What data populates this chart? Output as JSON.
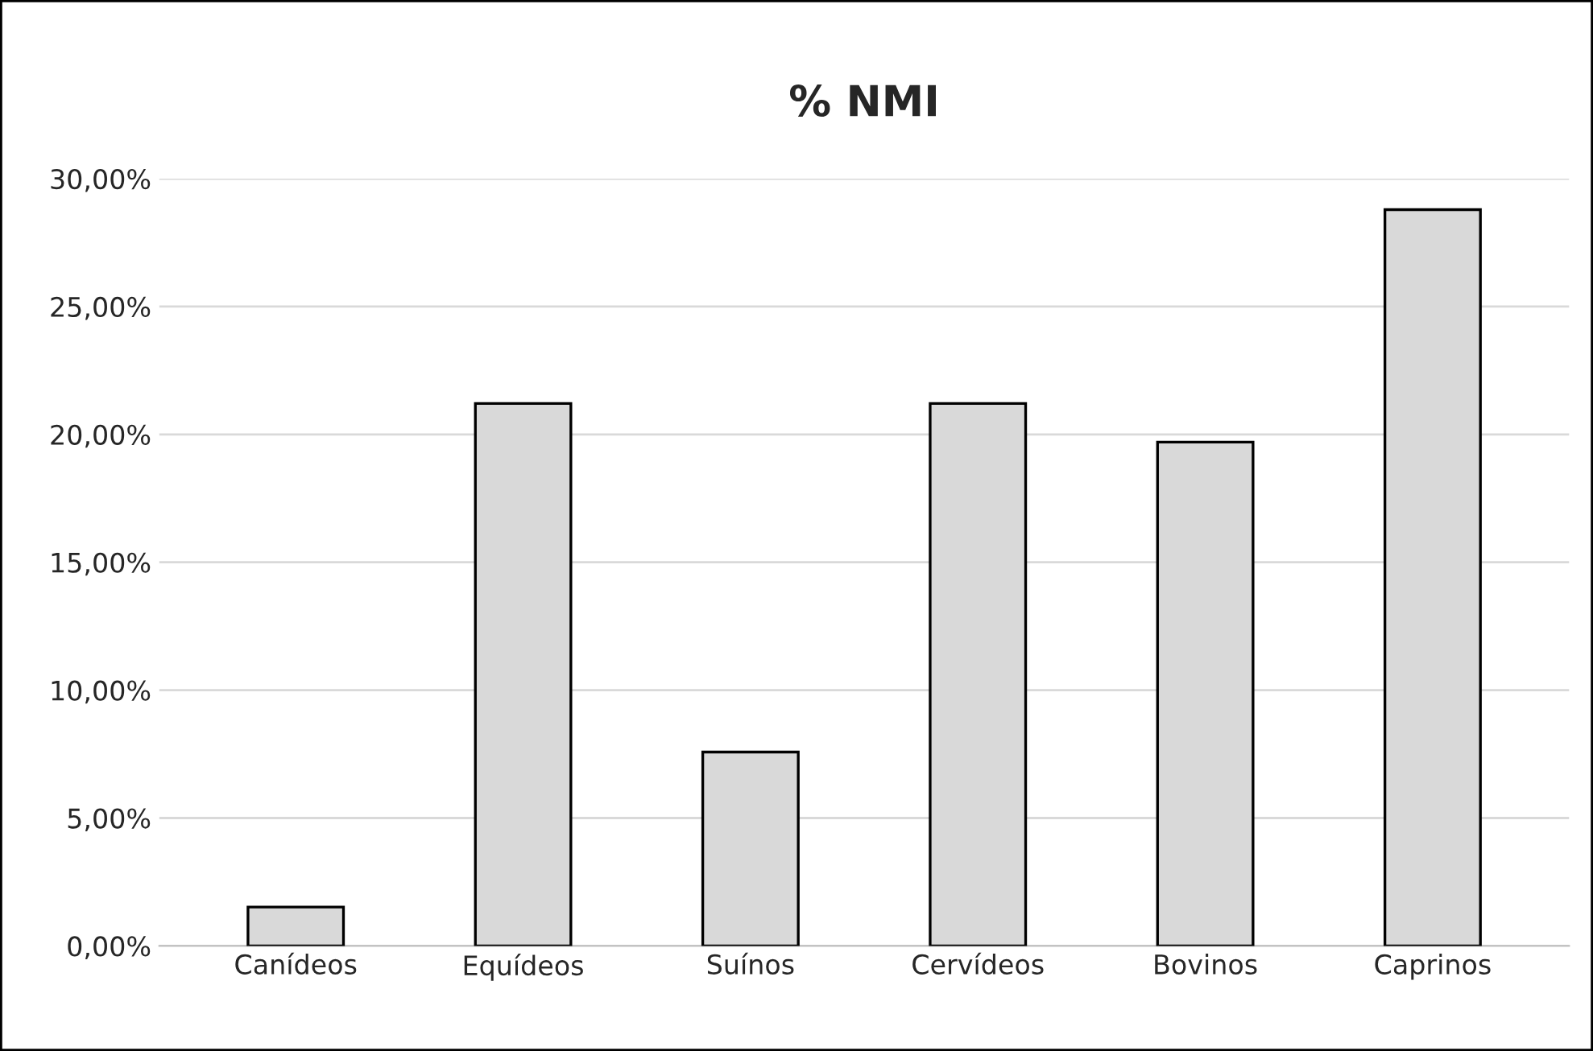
{
  "chart_data": {
    "type": "bar",
    "title": "% NMI",
    "categories": [
      "Canídeos",
      "Equídeos",
      "Suínos",
      "Cervídeos",
      "Bovinos",
      "Caprinos"
    ],
    "values": [
      1.52,
      21.21,
      7.58,
      21.21,
      19.7,
      28.79
    ],
    "color": "#d9d9d9",
    "ylim": [
      0,
      30
    ],
    "yticks": [
      {
        "value": 0,
        "label": "0,00%"
      },
      {
        "value": 5,
        "label": "5,00%"
      },
      {
        "value": 10,
        "label": "10,00%"
      },
      {
        "value": 15,
        "label": "15,00%"
      },
      {
        "value": 20,
        "label": "20,00%"
      },
      {
        "value": 25,
        "label": "25,00%"
      },
      {
        "value": 30,
        "label": "30,00%"
      }
    ],
    "grid": "y"
  }
}
